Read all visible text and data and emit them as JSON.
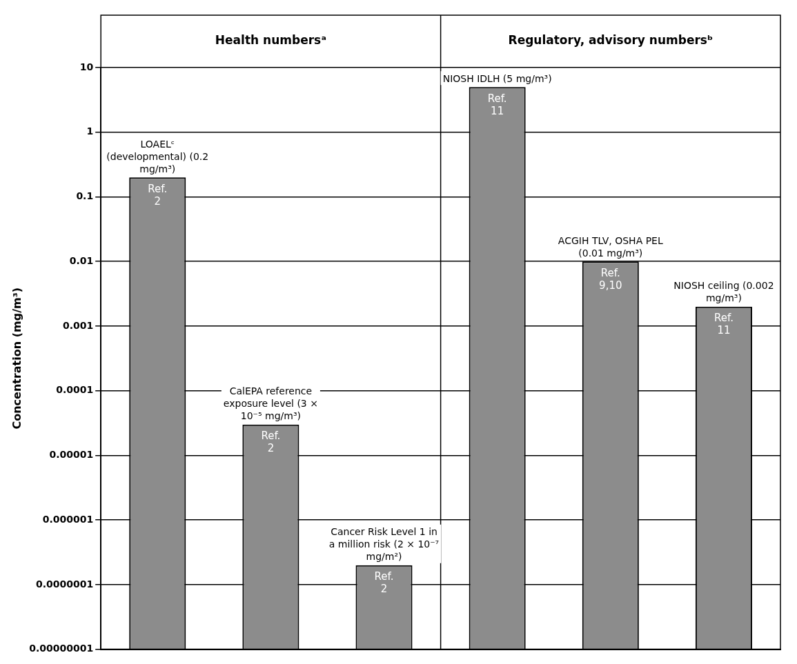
{
  "chart_data": {
    "type": "bar",
    "ylabel": "Concentration (mg/m³)",
    "categories": [
      "Ref. 2",
      "Ref. 2",
      "Ref. 2",
      "Ref. 11",
      "Ref. 9,10",
      "Ref. 11"
    ],
    "values": [
      0.2,
      3e-05,
      2e-07,
      5,
      0.01,
      0.002
    ],
    "color": "#8c8c8c",
    "value_labels": [
      "LOAELᶜ (developmental) (0.2 mg/m³)",
      "CalEPA reference exposure level (3 × 10⁻⁵ mg/m³)",
      "Cancer Risk Level 1 in a million risk (2 × 10⁻⁷ mg/m²)",
      "NIOSH IDLH (5 mg/m³)",
      "ACGIH TLV, OSHA PEL (0.01 mg/m³)",
      "NIOSH ceiling (0.002 mg/m³)"
    ],
    "annotations": [
      "Health numbersᵃ",
      "Regulatory, advisory numbersᵇ"
    ],
    "log": true,
    "ylim": [
      1e-08,
      10
    ],
    "yticks": [
      {
        "value": 1e-08,
        "label": "0.00000001"
      },
      {
        "value": 1e-07,
        "label": "0.0000001"
      },
      {
        "value": 1e-06,
        "label": "0.000001"
      },
      {
        "value": 1e-05,
        "label": "0.00001"
      },
      0.0001,
      0.001,
      0.01,
      0.1,
      1,
      10
    ],
    "grid": "y",
    "legend": false
  }
}
